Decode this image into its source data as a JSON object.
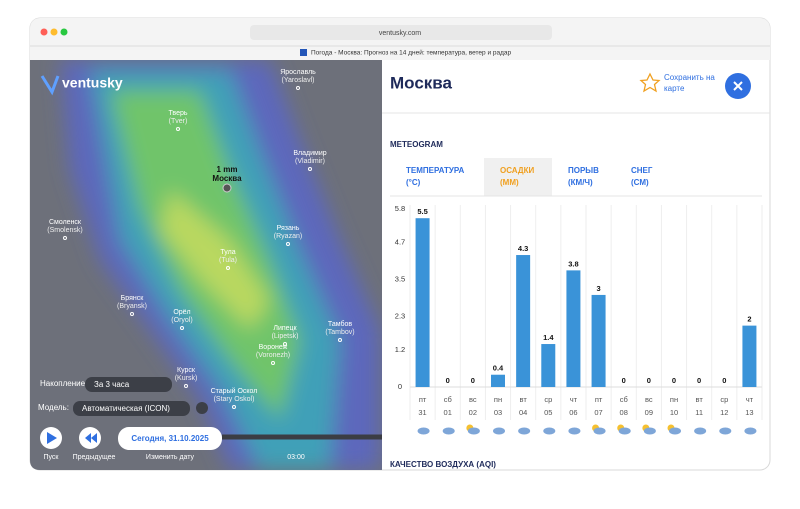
{
  "browser": {
    "url": "ventusky.com",
    "tab_title": "Погода - Москва: Прогноз на 14 дней: температура, ветер и радар"
  },
  "map": {
    "logo": "ventusky",
    "cities": [
      {
        "name": "Ярославль",
        "latin": "(Yaroslavl)"
      },
      {
        "name": "Тверь",
        "latin": "(Tver)"
      },
      {
        "name": "Владимир",
        "latin": "(Vladimir)"
      },
      {
        "name": "Смоленск",
        "latin": "(Smolensk)"
      },
      {
        "name": "Рязань",
        "latin": "(Ryazan)"
      },
      {
        "name": "Тула",
        "latin": "(Tula)"
      },
      {
        "name": "Брянск",
        "latin": "(Bryansk)"
      },
      {
        "name": "Орёл",
        "latin": "(Oryol)"
      },
      {
        "name": "Липецк",
        "latin": "(Lipetsk)"
      },
      {
        "name": "Тамбов",
        "latin": "(Tambov)"
      },
      {
        "name": "Курск",
        "latin": "(Kursk)"
      },
      {
        "name": "Воронеж",
        "latin": "(Voronezh)"
      },
      {
        "name": "Старый Оскол",
        "latin": "(Stary Oskol)"
      }
    ],
    "pin": {
      "amount": "1 mm",
      "name": "Москва"
    },
    "controls": {
      "accum_label": "Накопление:",
      "accum_value": "За 3 часа",
      "model_label": "Модель:",
      "model_value": "Автоматическая (ICON)",
      "play": "Пуск",
      "previous": "Предыдущее",
      "date": "Сегодня, 31.10.2025",
      "change_date": "Изменить дату",
      "time": "03:00"
    }
  },
  "panel": {
    "city": "Москва",
    "save": [
      "Сохранить на",
      "карте"
    ],
    "section": "METEOGRAM",
    "tabs": [
      {
        "label": "ТЕМПЕРАТУРА",
        "unit": "(°C)"
      },
      {
        "label": "ОСАДКИ",
        "unit": "(MM)"
      },
      {
        "label": "ПОРЫВ",
        "unit": "(КМ/Ч)"
      },
      {
        "label": "СНЕГ",
        "unit": "(СМ)"
      }
    ],
    "footer": "КАЧЕСТВО ВОЗДУХА (AQI)"
  },
  "meteogram": {
    "type": "bar",
    "color": "#3a93d8",
    "grid": false,
    "weekdays": [
      "пт",
      "сб",
      "вс",
      "пн",
      "вт",
      "ср",
      "чт",
      "пт",
      "сб",
      "вс",
      "пн",
      "вт",
      "ср",
      "чт"
    ],
    "days": [
      "31",
      "01",
      "02",
      "03",
      "04",
      "05",
      "06",
      "07",
      "08",
      "09",
      "10",
      "11",
      "12",
      "13"
    ],
    "values": [
      5.5,
      0,
      0,
      0.4,
      4.3,
      1.4,
      3.8,
      3,
      0,
      0,
      0,
      0,
      0,
      2
    ],
    "ylim": [
      0,
      5.8
    ],
    "yticks": [
      0,
      1.2,
      2.3,
      3.5,
      4.7,
      5.8
    ]
  }
}
